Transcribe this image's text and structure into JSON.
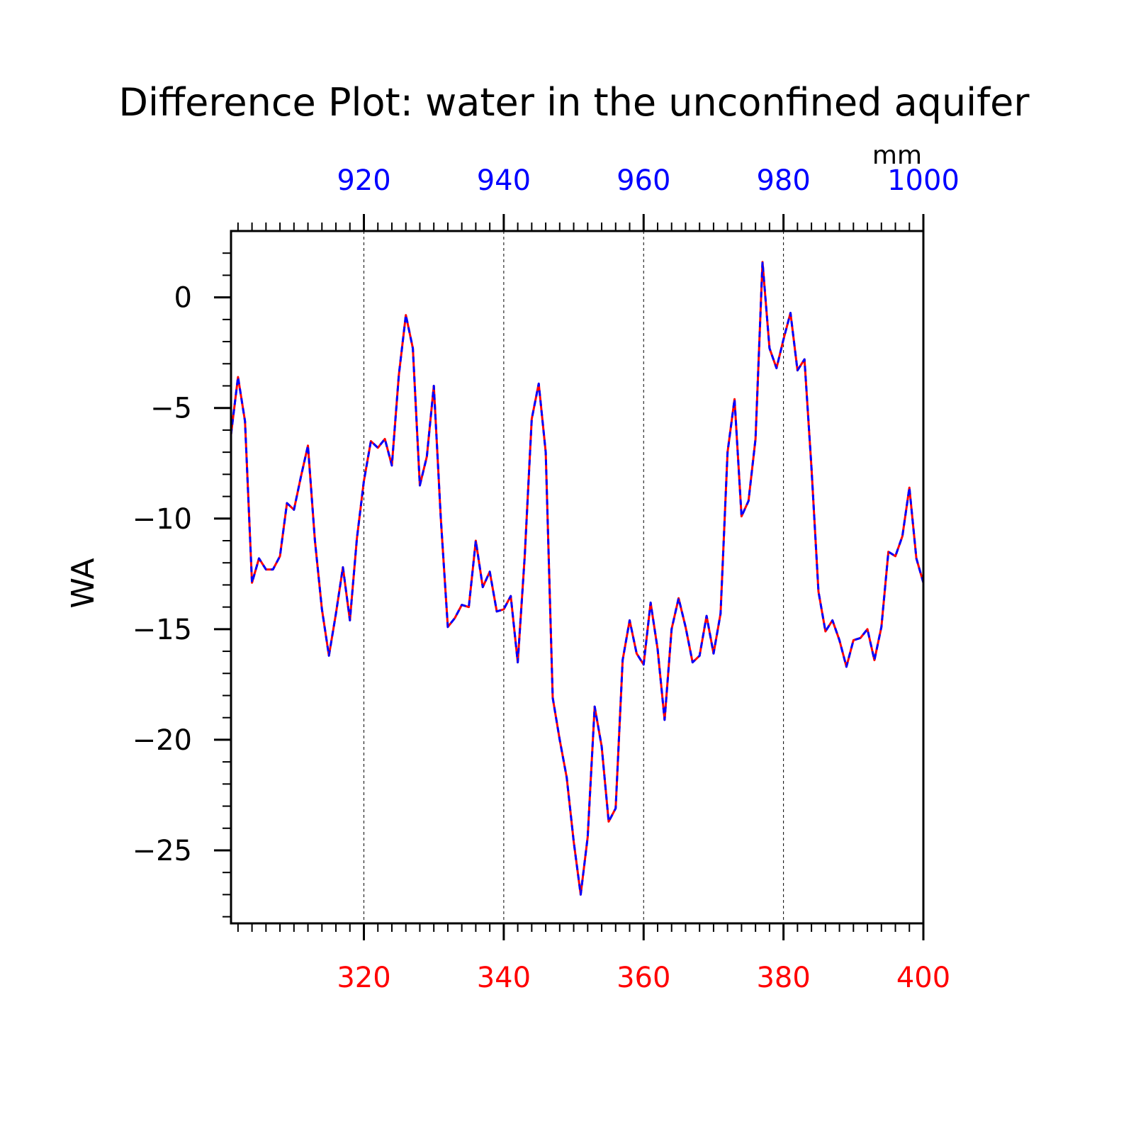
{
  "chart_data": {
    "type": "line",
    "title": "Difference Plot: water in the unconfined aquifer",
    "top_axis_units": "mm",
    "ylabel": "WA",
    "x": [
      301,
      302,
      303,
      304,
      305,
      306,
      307,
      308,
      309,
      310,
      311,
      312,
      313,
      314,
      315,
      316,
      317,
      318,
      319,
      320,
      321,
      322,
      323,
      324,
      325,
      326,
      327,
      328,
      329,
      330,
      331,
      332,
      333,
      334,
      335,
      336,
      337,
      338,
      339,
      340,
      341,
      342,
      343,
      344,
      345,
      346,
      347,
      348,
      349,
      350,
      351,
      352,
      353,
      354,
      355,
      356,
      357,
      358,
      359,
      360,
      361,
      362,
      363,
      364,
      365,
      366,
      367,
      368,
      369,
      370,
      371,
      372,
      373,
      374,
      375,
      376,
      377,
      378,
      379,
      380,
      381,
      382,
      383,
      384,
      385,
      386,
      387,
      388,
      389,
      390,
      391,
      392,
      393,
      394,
      395,
      396,
      397,
      398,
      399,
      400
    ],
    "xlim": [
      301,
      400
    ],
    "ylim": [
      -28.3,
      3
    ],
    "bottom_axis": {
      "ticks": [
        320,
        340,
        360,
        380,
        400
      ],
      "labels": [
        "320",
        "340",
        "360",
        "380",
        "400"
      ],
      "color": "#ff0000"
    },
    "top_axis": {
      "ticks": [
        320,
        340,
        360,
        380,
        400
      ],
      "labels": [
        "920",
        "940",
        "960",
        "980",
        "1000"
      ],
      "color": "#0000ff"
    },
    "y_axis": {
      "ticks": [
        0,
        -5,
        -10,
        -15,
        -20,
        -25
      ],
      "labels": [
        "0",
        "−5",
        "−10",
        "−15",
        "−20",
        "−25"
      ]
    },
    "vertical_gridlines": [
      320,
      340,
      360,
      380
    ],
    "series": [
      {
        "color": "#ff0000",
        "style": "solid",
        "values": [
          -6.2,
          -3.6,
          -5.6,
          -12.9,
          -11.8,
          -12.3,
          -12.3,
          -11.7,
          -9.3,
          -9.6,
          -8.1,
          -6.7,
          -11.0,
          -14.1,
          -16.2,
          -14.3,
          -12.2,
          -14.6,
          -10.9,
          -8.3,
          -6.5,
          -6.8,
          -6.4,
          -7.6,
          -3.5,
          -0.8,
          -2.3,
          -8.5,
          -7.2,
          -4.0,
          -10.0,
          -14.9,
          -14.5,
          -13.9,
          -14.0,
          -11.0,
          -13.1,
          -12.4,
          -14.2,
          -14.1,
          -13.5,
          -16.5,
          -11.7,
          -5.5,
          -3.9,
          -7.0,
          -18.1,
          -20.0,
          -21.7,
          -24.6,
          -27.0,
          -24.4,
          -18.5,
          -20.3,
          -23.7,
          -23.1,
          -16.4,
          -14.6,
          -16.1,
          -16.6,
          -13.8,
          -15.9,
          -19.1,
          -15.0,
          -13.6,
          -14.9,
          -16.5,
          -16.2,
          -14.4,
          -16.1,
          -14.3,
          -7.0,
          -4.6,
          -9.9,
          -9.2,
          -6.4,
          1.6,
          -2.3,
          -3.2,
          -1.9,
          -0.7,
          -3.3,
          -2.8,
          -7.7,
          -13.3,
          -15.1,
          -14.6,
          -15.5,
          -16.7,
          -15.5,
          -15.4,
          -15.0,
          -16.4,
          -14.9,
          -11.5,
          -11.7,
          -10.8,
          -8.6,
          -11.8,
          -12.9
        ]
      },
      {
        "color": "#0000ff",
        "style": "dashed",
        "values": [
          -6.2,
          -3.6,
          -5.6,
          -12.9,
          -11.8,
          -12.3,
          -12.3,
          -11.7,
          -9.3,
          -9.6,
          -8.1,
          -6.7,
          -11.0,
          -14.1,
          -16.2,
          -14.3,
          -12.2,
          -14.6,
          -10.9,
          -8.3,
          -6.5,
          -6.8,
          -6.4,
          -7.6,
          -3.5,
          -0.8,
          -2.3,
          -8.5,
          -7.2,
          -4.0,
          -10.0,
          -14.9,
          -14.5,
          -13.9,
          -14.0,
          -11.0,
          -13.1,
          -12.4,
          -14.2,
          -14.1,
          -13.5,
          -16.5,
          -11.7,
          -5.5,
          -3.9,
          -7.0,
          -18.1,
          -20.0,
          -21.7,
          -24.6,
          -27.0,
          -24.4,
          -18.5,
          -20.3,
          -23.7,
          -23.1,
          -16.4,
          -14.6,
          -16.1,
          -16.6,
          -13.8,
          -15.9,
          -19.1,
          -15.0,
          -13.6,
          -14.9,
          -16.5,
          -16.2,
          -14.4,
          -16.1,
          -14.3,
          -7.0,
          -4.6,
          -9.9,
          -9.2,
          -6.4,
          1.6,
          -2.3,
          -3.2,
          -1.9,
          -0.7,
          -3.3,
          -2.8,
          -7.7,
          -13.3,
          -15.1,
          -14.6,
          -15.5,
          -16.7,
          -15.5,
          -15.4,
          -15.0,
          -16.4,
          -14.9,
          -11.5,
          -11.7,
          -10.8,
          -8.6,
          -11.8,
          -12.9
        ]
      }
    ]
  }
}
